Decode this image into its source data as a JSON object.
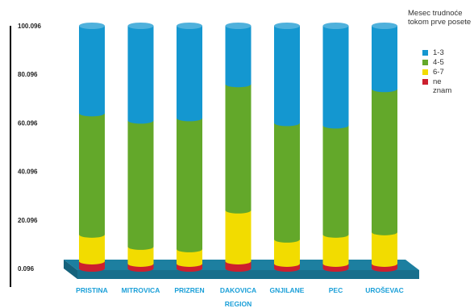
{
  "chart_data": {
    "type": "bar",
    "stacked": true,
    "xlabel": "REGION",
    "ylabel": "",
    "ylim": [
      0,
      100
    ],
    "y_tick_labels": [
      "0.096",
      "20.096",
      "40.096",
      "60.096",
      "80.096",
      "100.096"
    ],
    "y_tick_values": [
      0,
      20,
      40,
      60,
      80,
      100
    ],
    "categories": [
      "PRISTINA",
      "MITROVICA",
      "PRIZREN",
      "DAKOVICA",
      "GNJILANE",
      "PEC",
      "UROŠEVAC"
    ],
    "legend_title": "Mesec trudnoće tokom prve posete",
    "legend_position": "right",
    "series": [
      {
        "name": "ne znam",
        "color": "#cc1f2e",
        "values": [
          3,
          2,
          2,
          3,
          2,
          2,
          2
        ]
      },
      {
        "name": "6-7",
        "color": "#f2dc00",
        "values": [
          11,
          7,
          6,
          21,
          10,
          12,
          13
        ]
      },
      {
        "name": "4-5",
        "color": "#63a82a",
        "values": [
          50,
          52,
          54,
          52,
          48,
          45,
          59
        ]
      },
      {
        "name": "1-3",
        "color": "#1497d0",
        "values": [
          36,
          39,
          38,
          24,
          40,
          41,
          26
        ]
      }
    ]
  }
}
